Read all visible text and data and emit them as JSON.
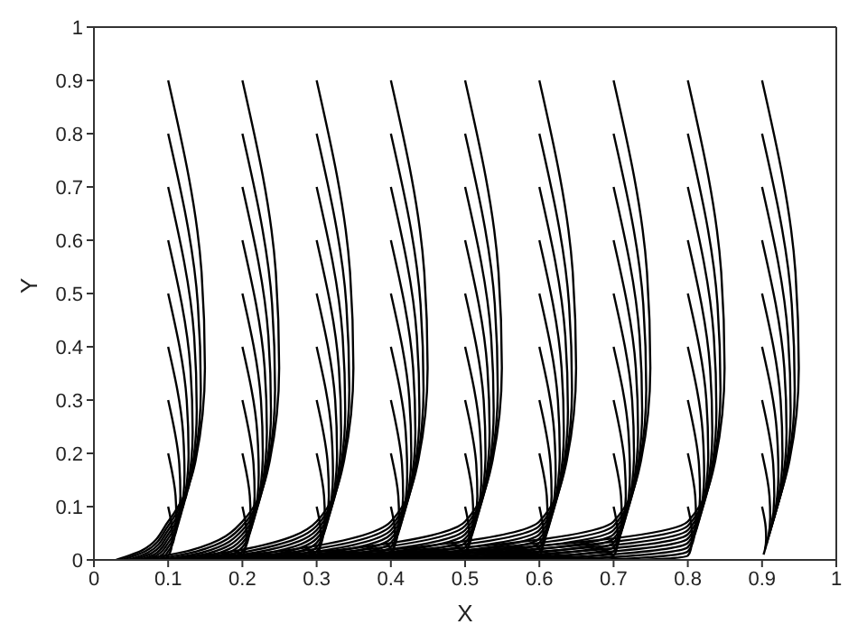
{
  "chart_data": {
    "type": "line",
    "xlabel": "X",
    "ylabel": "Y",
    "color": "#000000",
    "xlim": [
      0,
      1
    ],
    "ylim": [
      0,
      1
    ],
    "xticks": [
      0,
      0.1,
      0.2,
      0.3,
      0.4,
      0.5,
      0.6,
      0.7,
      0.8,
      0.9,
      1
    ],
    "yticks": [
      0,
      0.1,
      0.2,
      0.3,
      0.4,
      0.5,
      0.6,
      0.7,
      0.8,
      0.9,
      1
    ],
    "series": [
      {
        "x": [
          0.1,
          0.145,
          0.1495,
          0.136,
          0.1,
          0.065,
          0.03
        ],
        "values": [
          0.9,
          0.54,
          0.36,
          0.18,
          0.072,
          0.018,
          0
        ]
      },
      {
        "x": [
          0.1,
          0.14,
          0.144,
          0.132,
          0.1,
          0.069,
          0.038
        ],
        "values": [
          0.8,
          0.48,
          0.32,
          0.16,
          0.064,
          0.016,
          0
        ]
      },
      {
        "x": [
          0.1,
          0.135,
          0.1385,
          0.128,
          0.1,
          0.073,
          0.046
        ],
        "values": [
          0.7,
          0.42,
          0.28,
          0.14,
          0.056,
          0.014,
          0
        ]
      },
      {
        "x": [
          0.1,
          0.13,
          0.133,
          0.124,
          0.1,
          0.077,
          0.053
        ],
        "values": [
          0.6,
          0.36,
          0.24,
          0.12,
          0.048,
          0.012,
          0
        ]
      },
      {
        "x": [
          0.1,
          0.125,
          0.1275,
          0.12,
          0.1,
          0.081,
          0.061
        ],
        "values": [
          0.5,
          0.3,
          0.2,
          0.1,
          0.04,
          0.01,
          0
        ]
      },
      {
        "x": [
          0.1,
          0.12,
          0.122,
          0.116,
          0.1,
          0.084,
          0.069
        ],
        "values": [
          0.4,
          0.24,
          0.16,
          0.08,
          0.032,
          0.008,
          0
        ]
      },
      {
        "x": [
          0.1,
          0.115,
          0.1165,
          0.112,
          0.1,
          0.088,
          0.077
        ],
        "values": [
          0.3,
          0.18,
          0.12,
          0.06,
          0.024,
          0.006,
          0
        ]
      },
      {
        "x": [
          0.1,
          0.11,
          0.111,
          0.108,
          0.1,
          0.092,
          0.084
        ],
        "values": [
          0.2,
          0.12,
          0.08,
          0.04,
          0.016,
          0.004,
          0
        ]
      },
      {
        "x": [
          0.1,
          0.105,
          0.1055,
          0.104,
          0.1,
          0.096,
          0.092
        ],
        "values": [
          0.1,
          0.06,
          0.04,
          0.02,
          0.008,
          0.002,
          0
        ]
      },
      {
        "x": [
          0.2,
          0.245,
          0.2495,
          0.236,
          0.2,
          0.13,
          0.06
        ],
        "values": [
          0.9,
          0.54,
          0.36,
          0.18,
          0.072,
          0.018,
          0
        ]
      },
      {
        "x": [
          0.2,
          0.24,
          0.244,
          0.232,
          0.2,
          0.138,
          0.076
        ],
        "values": [
          0.8,
          0.48,
          0.32,
          0.16,
          0.064,
          0.016,
          0
        ]
      },
      {
        "x": [
          0.2,
          0.235,
          0.2385,
          0.228,
          0.2,
          0.146,
          0.091
        ],
        "values": [
          0.7,
          0.42,
          0.28,
          0.14,
          0.056,
          0.014,
          0
        ]
      },
      {
        "x": [
          0.2,
          0.23,
          0.233,
          0.224,
          0.2,
          0.153,
          0.107
        ],
        "values": [
          0.6,
          0.36,
          0.24,
          0.12,
          0.048,
          0.012,
          0
        ]
      },
      {
        "x": [
          0.2,
          0.225,
          0.2275,
          0.22,
          0.2,
          0.161,
          0.122
        ],
        "values": [
          0.5,
          0.3,
          0.2,
          0.1,
          0.04,
          0.01,
          0
        ]
      },
      {
        "x": [
          0.2,
          0.22,
          0.222,
          0.216,
          0.2,
          0.169,
          0.138
        ],
        "values": [
          0.4,
          0.24,
          0.16,
          0.08,
          0.032,
          0.008,
          0
        ]
      },
      {
        "x": [
          0.2,
          0.215,
          0.2165,
          0.212,
          0.2,
          0.177,
          0.153
        ],
        "values": [
          0.3,
          0.18,
          0.12,
          0.06,
          0.024,
          0.006,
          0
        ]
      },
      {
        "x": [
          0.2,
          0.21,
          0.211,
          0.208,
          0.2,
          0.184,
          0.169
        ],
        "values": [
          0.2,
          0.12,
          0.08,
          0.04,
          0.016,
          0.004,
          0
        ]
      },
      {
        "x": [
          0.2,
          0.205,
          0.2055,
          0.204,
          0.2,
          0.192,
          0.184
        ],
        "values": [
          0.1,
          0.06,
          0.04,
          0.02,
          0.008,
          0.002,
          0
        ]
      },
      {
        "x": [
          0.3,
          0.345,
          0.3495,
          0.336,
          0.3,
          0.195,
          0.09
        ],
        "values": [
          0.9,
          0.54,
          0.36,
          0.18,
          0.072,
          0.018,
          0
        ]
      },
      {
        "x": [
          0.3,
          0.34,
          0.344,
          0.332,
          0.3,
          0.207,
          0.113
        ],
        "values": [
          0.8,
          0.48,
          0.32,
          0.16,
          0.064,
          0.016,
          0
        ]
      },
      {
        "x": [
          0.3,
          0.335,
          0.3385,
          0.328,
          0.3,
          0.218,
          0.137
        ],
        "values": [
          0.7,
          0.42,
          0.28,
          0.14,
          0.056,
          0.014,
          0
        ]
      },
      {
        "x": [
          0.3,
          0.33,
          0.333,
          0.324,
          0.3,
          0.23,
          0.16
        ],
        "values": [
          0.6,
          0.36,
          0.24,
          0.12,
          0.048,
          0.012,
          0
        ]
      },
      {
        "x": [
          0.3,
          0.325,
          0.3275,
          0.32,
          0.3,
          0.242,
          0.183
        ],
        "values": [
          0.5,
          0.3,
          0.2,
          0.1,
          0.04,
          0.01,
          0
        ]
      },
      {
        "x": [
          0.3,
          0.32,
          0.322,
          0.316,
          0.3,
          0.253,
          0.207
        ],
        "values": [
          0.4,
          0.24,
          0.16,
          0.08,
          0.032,
          0.008,
          0
        ]
      },
      {
        "x": [
          0.3,
          0.315,
          0.3165,
          0.312,
          0.3,
          0.265,
          0.23
        ],
        "values": [
          0.3,
          0.18,
          0.12,
          0.06,
          0.024,
          0.006,
          0
        ]
      },
      {
        "x": [
          0.3,
          0.31,
          0.311,
          0.308,
          0.3,
          0.277,
          0.253
        ],
        "values": [
          0.2,
          0.12,
          0.08,
          0.04,
          0.016,
          0.004,
          0
        ]
      },
      {
        "x": [
          0.3,
          0.305,
          0.3055,
          0.304,
          0.3,
          0.288,
          0.277
        ],
        "values": [
          0.1,
          0.06,
          0.04,
          0.02,
          0.008,
          0.002,
          0
        ]
      },
      {
        "x": [
          0.4,
          0.445,
          0.4495,
          0.436,
          0.4,
          0.26,
          0.12
        ],
        "values": [
          0.9,
          0.54,
          0.36,
          0.18,
          0.072,
          0.018,
          0
        ]
      },
      {
        "x": [
          0.4,
          0.44,
          0.444,
          0.432,
          0.4,
          0.276,
          0.151
        ],
        "values": [
          0.8,
          0.48,
          0.32,
          0.16,
          0.064,
          0.016,
          0
        ]
      },
      {
        "x": [
          0.4,
          0.435,
          0.4385,
          0.428,
          0.4,
          0.291,
          0.182
        ],
        "values": [
          0.7,
          0.42,
          0.28,
          0.14,
          0.056,
          0.014,
          0
        ]
      },
      {
        "x": [
          0.4,
          0.43,
          0.433,
          0.424,
          0.4,
          0.307,
          0.213
        ],
        "values": [
          0.6,
          0.36,
          0.24,
          0.12,
          0.048,
          0.012,
          0
        ]
      },
      {
        "x": [
          0.4,
          0.425,
          0.4275,
          0.42,
          0.4,
          0.322,
          0.244
        ],
        "values": [
          0.5,
          0.3,
          0.2,
          0.1,
          0.04,
          0.01,
          0
        ]
      },
      {
        "x": [
          0.4,
          0.42,
          0.422,
          0.416,
          0.4,
          0.338,
          0.276
        ],
        "values": [
          0.4,
          0.24,
          0.16,
          0.08,
          0.032,
          0.008,
          0
        ]
      },
      {
        "x": [
          0.4,
          0.415,
          0.4165,
          0.412,
          0.4,
          0.353,
          0.307
        ],
        "values": [
          0.3,
          0.18,
          0.12,
          0.06,
          0.024,
          0.006,
          0
        ]
      },
      {
        "x": [
          0.4,
          0.41,
          0.411,
          0.408,
          0.4,
          0.369,
          0.338
        ],
        "values": [
          0.2,
          0.12,
          0.08,
          0.04,
          0.016,
          0.004,
          0
        ]
      },
      {
        "x": [
          0.4,
          0.405,
          0.4055,
          0.404,
          0.4,
          0.384,
          0.369
        ],
        "values": [
          0.1,
          0.06,
          0.04,
          0.02,
          0.008,
          0.002,
          0
        ]
      },
      {
        "x": [
          0.5,
          0.545,
          0.5495,
          0.536,
          0.5,
          0.325,
          0.15
        ],
        "values": [
          0.9,
          0.54,
          0.36,
          0.18,
          0.072,
          0.018,
          0
        ]
      },
      {
        "x": [
          0.5,
          0.54,
          0.544,
          0.532,
          0.5,
          0.344,
          0.189
        ],
        "values": [
          0.8,
          0.48,
          0.32,
          0.16,
          0.064,
          0.016,
          0
        ]
      },
      {
        "x": [
          0.5,
          0.535,
          0.5385,
          0.528,
          0.5,
          0.364,
          0.228
        ],
        "values": [
          0.7,
          0.42,
          0.28,
          0.14,
          0.056,
          0.014,
          0
        ]
      },
      {
        "x": [
          0.5,
          0.53,
          0.533,
          0.524,
          0.5,
          0.383,
          0.267
        ],
        "values": [
          0.6,
          0.36,
          0.24,
          0.12,
          0.048,
          0.012,
          0
        ]
      },
      {
        "x": [
          0.5,
          0.525,
          0.5275,
          0.52,
          0.5,
          0.403,
          0.306
        ],
        "values": [
          0.5,
          0.3,
          0.2,
          0.1,
          0.04,
          0.01,
          0
        ]
      },
      {
        "x": [
          0.5,
          0.52,
          0.522,
          0.516,
          0.5,
          0.422,
          0.344
        ],
        "values": [
          0.4,
          0.24,
          0.16,
          0.08,
          0.032,
          0.008,
          0
        ]
      },
      {
        "x": [
          0.5,
          0.515,
          0.5165,
          0.512,
          0.5,
          0.442,
          0.383
        ],
        "values": [
          0.3,
          0.18,
          0.12,
          0.06,
          0.024,
          0.006,
          0
        ]
      },
      {
        "x": [
          0.5,
          0.51,
          0.511,
          0.508,
          0.5,
          0.461,
          0.422
        ],
        "values": [
          0.2,
          0.12,
          0.08,
          0.04,
          0.016,
          0.004,
          0
        ]
      },
      {
        "x": [
          0.5,
          0.505,
          0.5055,
          0.504,
          0.5,
          0.481,
          0.461
        ],
        "values": [
          0.1,
          0.06,
          0.04,
          0.02,
          0.008,
          0.002,
          0
        ]
      },
      {
        "x": [
          0.6,
          0.645,
          0.6495,
          0.636,
          0.6,
          0.39,
          0.18
        ],
        "values": [
          0.9,
          0.54,
          0.36,
          0.18,
          0.072,
          0.018,
          0
        ]
      },
      {
        "x": [
          0.6,
          0.64,
          0.644,
          0.632,
          0.6,
          0.413,
          0.227
        ],
        "values": [
          0.8,
          0.48,
          0.32,
          0.16,
          0.064,
          0.016,
          0
        ]
      },
      {
        "x": [
          0.6,
          0.635,
          0.6385,
          0.628,
          0.6,
          0.437,
          0.273
        ],
        "values": [
          0.7,
          0.42,
          0.28,
          0.14,
          0.056,
          0.014,
          0
        ]
      },
      {
        "x": [
          0.6,
          0.63,
          0.633,
          0.624,
          0.6,
          0.46,
          0.32
        ],
        "values": [
          0.6,
          0.36,
          0.24,
          0.12,
          0.048,
          0.012,
          0
        ]
      },
      {
        "x": [
          0.6,
          0.625,
          0.6275,
          0.62,
          0.6,
          0.483,
          0.367
        ],
        "values": [
          0.5,
          0.3,
          0.2,
          0.1,
          0.04,
          0.01,
          0
        ]
      },
      {
        "x": [
          0.6,
          0.62,
          0.622,
          0.616,
          0.6,
          0.507,
          0.413
        ],
        "values": [
          0.4,
          0.24,
          0.16,
          0.08,
          0.032,
          0.008,
          0
        ]
      },
      {
        "x": [
          0.6,
          0.615,
          0.6165,
          0.612,
          0.6,
          0.53,
          0.46
        ],
        "values": [
          0.3,
          0.18,
          0.12,
          0.06,
          0.024,
          0.006,
          0
        ]
      },
      {
        "x": [
          0.6,
          0.61,
          0.611,
          0.608,
          0.6,
          0.553,
          0.507
        ],
        "values": [
          0.2,
          0.12,
          0.08,
          0.04,
          0.016,
          0.004,
          0
        ]
      },
      {
        "x": [
          0.6,
          0.605,
          0.6055,
          0.604,
          0.6,
          0.577,
          0.553
        ],
        "values": [
          0.1,
          0.06,
          0.04,
          0.02,
          0.008,
          0.002,
          0
        ]
      },
      {
        "x": [
          0.7,
          0.745,
          0.7495,
          0.736,
          0.7,
          0.455,
          0.21
        ],
        "values": [
          0.9,
          0.54,
          0.36,
          0.18,
          0.072,
          0.018,
          0
        ]
      },
      {
        "x": [
          0.7,
          0.74,
          0.744,
          0.732,
          0.7,
          0.482,
          0.264
        ],
        "values": [
          0.8,
          0.48,
          0.32,
          0.16,
          0.064,
          0.016,
          0
        ]
      },
      {
        "x": [
          0.7,
          0.735,
          0.7385,
          0.728,
          0.7,
          0.509,
          0.319
        ],
        "values": [
          0.7,
          0.42,
          0.28,
          0.14,
          0.056,
          0.014,
          0
        ]
      },
      {
        "x": [
          0.7,
          0.73,
          0.733,
          0.724,
          0.7,
          0.537,
          0.373
        ],
        "values": [
          0.6,
          0.36,
          0.24,
          0.12,
          0.048,
          0.012,
          0
        ]
      },
      {
        "x": [
          0.7,
          0.725,
          0.7275,
          0.72,
          0.7,
          0.564,
          0.428
        ],
        "values": [
          0.5,
          0.3,
          0.2,
          0.1,
          0.04,
          0.01,
          0
        ]
      },
      {
        "x": [
          0.7,
          0.72,
          0.722,
          0.716,
          0.7,
          0.591,
          0.482
        ],
        "values": [
          0.4,
          0.24,
          0.16,
          0.08,
          0.032,
          0.008,
          0
        ]
      },
      {
        "x": [
          0.7,
          0.715,
          0.7165,
          0.712,
          0.7,
          0.618,
          0.537
        ],
        "values": [
          0.3,
          0.18,
          0.12,
          0.06,
          0.024,
          0.006,
          0
        ]
      },
      {
        "x": [
          0.7,
          0.71,
          0.711,
          0.708,
          0.7,
          0.646,
          0.591
        ],
        "values": [
          0.2,
          0.12,
          0.08,
          0.04,
          0.016,
          0.004,
          0
        ]
      },
      {
        "x": [
          0.7,
          0.705,
          0.7055,
          0.704,
          0.7,
          0.673,
          0.646
        ],
        "values": [
          0.1,
          0.06,
          0.04,
          0.02,
          0.008,
          0.002,
          0
        ]
      },
      {
        "x": [
          0.8,
          0.845,
          0.8495,
          0.836,
          0.8,
          0.52,
          0.24
        ],
        "values": [
          0.9,
          0.54,
          0.36,
          0.18,
          0.072,
          0.018,
          0
        ]
      },
      {
        "x": [
          0.8,
          0.84,
          0.844,
          0.832,
          0.8,
          0.551,
          0.302
        ],
        "values": [
          0.8,
          0.48,
          0.32,
          0.16,
          0.064,
          0.016,
          0
        ]
      },
      {
        "x": [
          0.8,
          0.835,
          0.8385,
          0.828,
          0.8,
          0.582,
          0.364
        ],
        "values": [
          0.7,
          0.42,
          0.28,
          0.14,
          0.056,
          0.014,
          0
        ]
      },
      {
        "x": [
          0.8,
          0.83,
          0.833,
          0.824,
          0.8,
          0.613,
          0.427
        ],
        "values": [
          0.6,
          0.36,
          0.24,
          0.12,
          0.048,
          0.012,
          0
        ]
      },
      {
        "x": [
          0.8,
          0.825,
          0.8275,
          0.82,
          0.8,
          0.644,
          0.489
        ],
        "values": [
          0.5,
          0.3,
          0.2,
          0.1,
          0.04,
          0.01,
          0
        ]
      },
      {
        "x": [
          0.8,
          0.82,
          0.822,
          0.816,
          0.8,
          0.676,
          0.551
        ],
        "values": [
          0.4,
          0.24,
          0.16,
          0.08,
          0.032,
          0.008,
          0
        ]
      },
      {
        "x": [
          0.8,
          0.815,
          0.8165,
          0.812,
          0.8,
          0.707,
          0.613
        ],
        "values": [
          0.3,
          0.18,
          0.12,
          0.06,
          0.024,
          0.006,
          0
        ]
      },
      {
        "x": [
          0.8,
          0.81,
          0.811,
          0.808,
          0.8,
          0.738,
          0.676
        ],
        "values": [
          0.2,
          0.12,
          0.08,
          0.04,
          0.016,
          0.004,
          0
        ]
      },
      {
        "x": [
          0.8,
          0.805,
          0.8055,
          0.804,
          0.8,
          0.769,
          0.738
        ],
        "values": [
          0.1,
          0.06,
          0.04,
          0.02,
          0.008,
          0.002,
          0
        ]
      },
      {
        "x": [
          0.9,
          0.945,
          0.9495,
          0.936,
          0.918
        ],
        "values": [
          0.9,
          0.54,
          0.36,
          0.18,
          0.09
        ]
      },
      {
        "x": [
          0.9,
          0.94,
          0.944,
          0.932,
          0.916
        ],
        "values": [
          0.8,
          0.48,
          0.32,
          0.16,
          0.08
        ]
      },
      {
        "x": [
          0.9,
          0.935,
          0.9385,
          0.928,
          0.914
        ],
        "values": [
          0.7,
          0.42,
          0.28,
          0.14,
          0.07
        ]
      },
      {
        "x": [
          0.9,
          0.93,
          0.933,
          0.924,
          0.912
        ],
        "values": [
          0.6,
          0.36,
          0.24,
          0.12,
          0.06
        ]
      },
      {
        "x": [
          0.9,
          0.925,
          0.9275,
          0.92,
          0.91
        ],
        "values": [
          0.5,
          0.3,
          0.2,
          0.1,
          0.05
        ]
      },
      {
        "x": [
          0.9,
          0.92,
          0.922,
          0.916,
          0.908
        ],
        "values": [
          0.4,
          0.24,
          0.16,
          0.08,
          0.04
        ]
      },
      {
        "x": [
          0.9,
          0.915,
          0.9165,
          0.912,
          0.906
        ],
        "values": [
          0.3,
          0.18,
          0.12,
          0.06,
          0.03
        ]
      },
      {
        "x": [
          0.9,
          0.91,
          0.911,
          0.908,
          0.904
        ],
        "values": [
          0.2,
          0.12,
          0.08,
          0.04,
          0.02
        ]
      },
      {
        "x": [
          0.9,
          0.905,
          0.9055,
          0.904,
          0.902
        ],
        "values": [
          0.1,
          0.06,
          0.04,
          0.02,
          0.01
        ]
      }
    ]
  }
}
